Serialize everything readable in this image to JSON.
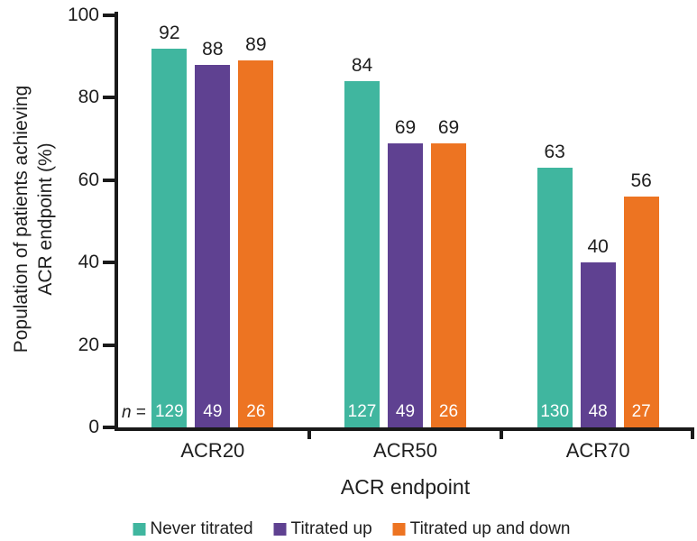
{
  "figure": {
    "ylabel_line1": "Population of patients achieving",
    "ylabel_line2": "ACR endpoint (%)",
    "xlabel": "ACR endpoint",
    "n_prefix_italic": "n",
    "n_prefix_rest": " = "
  },
  "chart_data": {
    "type": "bar",
    "title": "",
    "categories": [
      "ACR20",
      "ACR50",
      "ACR70"
    ],
    "series": [
      {
        "name": "Never titrated",
        "color": "#40B69F",
        "values": [
          92,
          84,
          63
        ],
        "n": [
          129,
          127,
          130
        ]
      },
      {
        "name": "Titrated up",
        "color": "#5F4191",
        "values": [
          88,
          69,
          40
        ],
        "n": [
          49,
          49,
          48
        ]
      },
      {
        "name": "Titrated up and down",
        "color": "#ED7422",
        "values": [
          89,
          69,
          56
        ],
        "n": [
          26,
          26,
          27
        ]
      }
    ],
    "xlabel": "ACR endpoint",
    "ylabel": "Population of patients achieving ACR endpoint (%)",
    "ylim": [
      0,
      100
    ],
    "yticks": [
      0,
      20,
      40,
      60,
      80,
      100
    ],
    "n_prefix": "n =",
    "grid": false,
    "legend_position": "bottom",
    "bar_value_labels": true,
    "n_value_labels_inside_bars": true,
    "axis_color": "#1a1a1a",
    "text_color": "#1e1e1e"
  }
}
